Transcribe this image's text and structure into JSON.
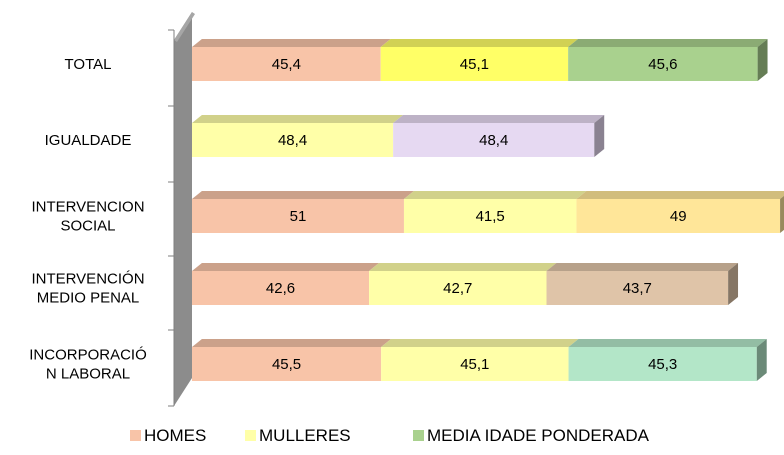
{
  "chart_data": {
    "type": "bar",
    "orientation": "horizontal",
    "stacked": true,
    "title": "",
    "categories": [
      "TOTAL",
      "IGUALDADE",
      "INTERVENCION SOCIAL",
      "INTERVENCIÓN MEDIO PENAL",
      "INCORPORACIÓN LABORAL"
    ],
    "category_lines": [
      [
        "TOTAL"
      ],
      [
        "IGUALDADE"
      ],
      [
        "INTERVENCION",
        "SOCIAL"
      ],
      [
        "INTERVENCIÓN",
        "MEDIO PENAL"
      ],
      [
        "INCORPORACIÓ",
        "N LABORAL"
      ]
    ],
    "series": [
      {
        "name": "HOMES",
        "values": [
          45.4,
          0,
          51,
          42.6,
          45.5
        ],
        "labels": [
          "45,4",
          "",
          "51",
          "42,6",
          "45,5"
        ],
        "color": "#f8c4a8"
      },
      {
        "name": "MULLERES",
        "values": [
          45.1,
          48.4,
          41.5,
          42.7,
          45.1
        ],
        "labels": [
          "45,1",
          "48,4",
          "41,5",
          "42,7",
          "45,1"
        ],
        "color": "#ffffa8"
      },
      {
        "name": "MEDIA IDADE PONDERADA",
        "values": [
          45.6,
          48.4,
          49,
          43.7,
          45.3
        ],
        "labels": [
          "45,6",
          "48,4",
          "49",
          "43,7",
          "45,3"
        ],
        "color": "#a9d18e"
      }
    ],
    "segment_colors": [
      [
        "#f8c4a8",
        "#ffff66",
        "#a9d18e"
      ],
      [
        "#ffffa8",
        "#e6d9f2"
      ],
      [
        "#f8c4a8",
        "#ffffa8",
        "#ffe699"
      ],
      [
        "#f8c4a8",
        "#ffffa8",
        "#dfc4a8"
      ],
      [
        "#f8c4a8",
        "#ffffa8",
        "#b3e6c8"
      ]
    ],
    "xlim": [
      0,
      141
    ],
    "grid": false,
    "legend_position": "bottom"
  }
}
